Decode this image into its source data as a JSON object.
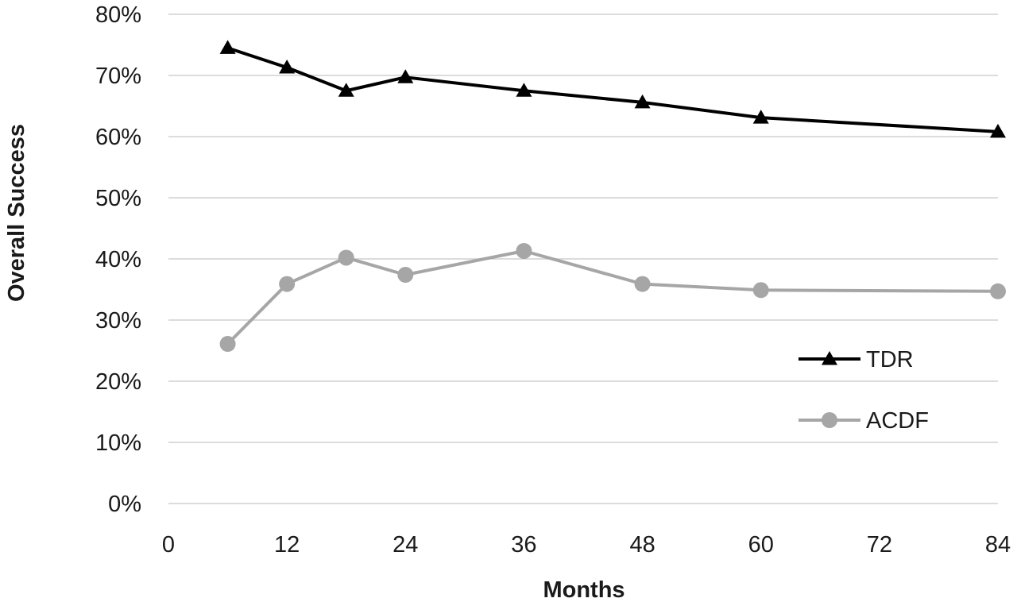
{
  "chart_data": {
    "type": "line",
    "title": "",
    "xlabel": "Months",
    "ylabel": "Overall Success",
    "xlim": [
      0,
      84
    ],
    "ylim": [
      0,
      0.8
    ],
    "x_ticks": [
      0,
      12,
      24,
      36,
      48,
      60,
      72,
      84
    ],
    "x_tick_labels": [
      "0",
      "12",
      "24",
      "36",
      "48",
      "60",
      "72",
      "84"
    ],
    "y_ticks": [
      0,
      0.1,
      0.2,
      0.3,
      0.4,
      0.5,
      0.6,
      0.7,
      0.8
    ],
    "y_tick_labels": [
      "0%",
      "10%",
      "20%",
      "30%",
      "40%",
      "50%",
      "60%",
      "70%",
      "80%"
    ],
    "grid": "horizontal",
    "legend_position": "right",
    "series": [
      {
        "name": "TDR",
        "color": "#000000",
        "marker": "triangle",
        "x": [
          6,
          12,
          18,
          24,
          36,
          48,
          60,
          84
        ],
        "y": [
          0.745,
          0.713,
          0.675,
          0.697,
          0.675,
          0.656,
          0.631,
          0.608
        ]
      },
      {
        "name": "ACDF",
        "color": "#a6a6a6",
        "marker": "circle",
        "x": [
          6,
          12,
          18,
          24,
          36,
          48,
          60,
          84
        ],
        "y": [
          0.261,
          0.359,
          0.402,
          0.374,
          0.413,
          0.359,
          0.349,
          0.347
        ]
      }
    ]
  }
}
